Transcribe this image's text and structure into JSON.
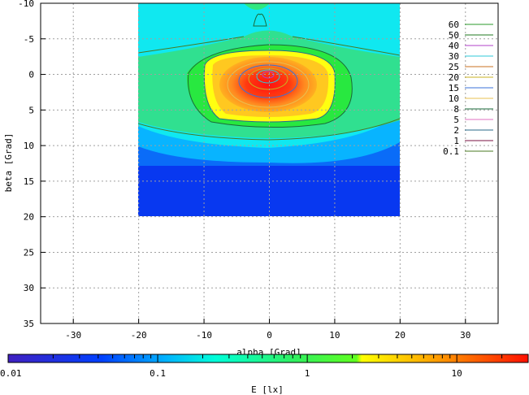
{
  "chart_data": {
    "type": "heatmap",
    "xlabel": "alpha [Grad]",
    "ylabel": "beta [Grad]",
    "xlim": [
      -35,
      35
    ],
    "ylim": [
      35,
      -10
    ],
    "x_reversed": false,
    "y_reversed": true,
    "xticks": [
      -30,
      -20,
      -10,
      0,
      10,
      20,
      30
    ],
    "yticks": [
      -10,
      -5,
      0,
      5,
      10,
      15,
      20,
      25,
      30,
      35
    ],
    "data_extent": {
      "alpha": [
        -20,
        20
      ],
      "beta": [
        -10,
        20
      ]
    },
    "grid": true,
    "legend_position": "top-right",
    "contour_levels": [
      {
        "label": "60",
        "color": "#2a9a2a"
      },
      {
        "label": "50",
        "color": "#1f7a1f"
      },
      {
        "label": "40",
        "color": "#b040c8"
      },
      {
        "label": "30",
        "color": "#2fc8d8"
      },
      {
        "label": "25",
        "color": "#c87020"
      },
      {
        "label": "20",
        "color": "#c8b020"
      },
      {
        "label": "15",
        "color": "#3a70d8"
      },
      {
        "label": "10",
        "color": "#e8c050"
      },
      {
        "label": "8",
        "color": "#1a6a3a"
      },
      {
        "label": "5",
        "color": "#e070c0"
      },
      {
        "label": "2",
        "color": "#2a6a8a"
      },
      {
        "label": "1",
        "color": "#7a1040"
      },
      {
        "label": "0.1",
        "color": "#4a7a20"
      }
    ],
    "colorbar": {
      "label": "E [lx]",
      "scale": "log",
      "range": [
        0.01,
        30
      ],
      "ticks": [
        "0.01",
        "0.1",
        "1",
        "10"
      ]
    }
  }
}
